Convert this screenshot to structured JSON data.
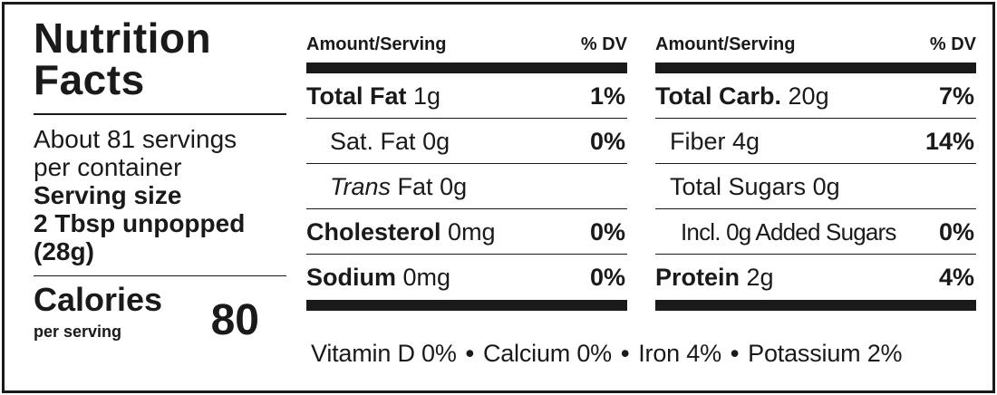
{
  "title": [
    "Nutrition",
    "Facts"
  ],
  "servings_per_container": [
    "About 81 servings",
    "per container"
  ],
  "serving_size": [
    "Serving size",
    "2 Tbsp unpopped",
    "(28g)"
  ],
  "calories": {
    "label": "Calories",
    "sub": "per serving",
    "value": "80"
  },
  "table_left": {
    "header": {
      "amount": "Amount/Serving",
      "dv": "% DV"
    },
    "rows": [
      {
        "name": "Total Fat",
        "amount": "1g",
        "dv": "1%"
      },
      {
        "name": "Sat. Fat",
        "amount": "0g",
        "dv": "0%"
      },
      {
        "name_italic": "Trans",
        "name": "Fat",
        "amount": "0g",
        "dv": ""
      },
      {
        "name": "Cholesterol",
        "amount": "0mg",
        "dv": "0%"
      },
      {
        "name": "Sodium",
        "amount": "0mg",
        "dv": "0%"
      }
    ]
  },
  "table_right": {
    "header": {
      "amount": "Amount/Serving",
      "dv": "% DV"
    },
    "rows": [
      {
        "name": "Total Carb.",
        "amount": "20g",
        "dv": "7%"
      },
      {
        "name": "Fiber",
        "amount": "4g",
        "dv": "14%"
      },
      {
        "name": "Total Sugars",
        "amount": "0g",
        "dv": ""
      },
      {
        "name": "Incl. 0g Added Sugars",
        "amount": "",
        "dv": "0%"
      },
      {
        "name": "Protein",
        "amount": "2g",
        "dv": "4%"
      }
    ]
  },
  "vitamins": [
    "Vitamin D 0%",
    "Calcium 0%",
    "Iron 4%",
    "Potassium 2%"
  ],
  "separator": "•"
}
